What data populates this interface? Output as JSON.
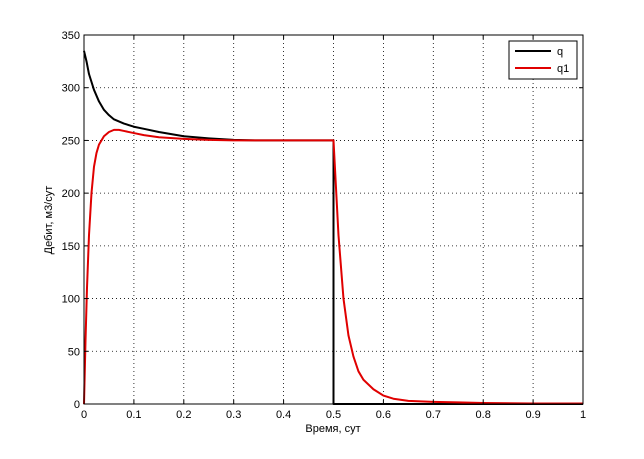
{
  "chart_data": {
    "type": "line",
    "xlabel": "Время, сут",
    "ylabel": "Дебит, м3/сут",
    "xlim": [
      0,
      1
    ],
    "ylim": [
      0,
      350
    ],
    "xticks": [
      0,
      0.1,
      0.2,
      0.3,
      0.4,
      0.5,
      0.6,
      0.7,
      0.8,
      0.9,
      1
    ],
    "xtick_labels": [
      "0",
      "0.1",
      "0.2",
      "0.3",
      "0.4",
      "0.5",
      "0.6",
      "0.7",
      "0.8",
      "0.9",
      "1"
    ],
    "yticks": [
      0,
      50,
      100,
      150,
      200,
      250,
      300,
      350
    ],
    "ytick_labels": [
      "0",
      "50",
      "100",
      "150",
      "200",
      "250",
      "300",
      "350"
    ],
    "grid": true,
    "legend_position": "top-right",
    "series": [
      {
        "name": "q",
        "color": "#000000",
        "x": [
          0,
          0.005,
          0.01,
          0.02,
          0.03,
          0.04,
          0.05,
          0.06,
          0.08,
          0.1,
          0.12,
          0.15,
          0.2,
          0.25,
          0.3,
          0.35,
          0.4,
          0.45,
          0.5,
          0.5,
          0.5,
          0.52,
          0.6,
          0.7,
          0.8,
          0.9,
          1.0
        ],
        "y": [
          335,
          325,
          313,
          298,
          287,
          279,
          274,
          270,
          266,
          263,
          261,
          258,
          254,
          252,
          250.5,
          250,
          250,
          250,
          250,
          125,
          0,
          0,
          0,
          0,
          0,
          0,
          0
        ]
      },
      {
        "name": "q1",
        "color": "#e00000",
        "x": [
          0,
          0.003,
          0.006,
          0.01,
          0.015,
          0.02,
          0.025,
          0.03,
          0.04,
          0.05,
          0.06,
          0.07,
          0.08,
          0.1,
          0.12,
          0.15,
          0.2,
          0.25,
          0.3,
          0.35,
          0.4,
          0.45,
          0.5,
          0.505,
          0.51,
          0.52,
          0.53,
          0.54,
          0.55,
          0.56,
          0.58,
          0.6,
          0.62,
          0.65,
          0.7,
          0.75,
          0.8,
          0.9,
          1.0
        ],
        "y": [
          0,
          60,
          110,
          160,
          200,
          225,
          238,
          246,
          254,
          258,
          260,
          260,
          259,
          257,
          255,
          253,
          251.5,
          250.5,
          250,
          250,
          250,
          250,
          250,
          205,
          160,
          100,
          65,
          45,
          31,
          23,
          14,
          8,
          5,
          3,
          2,
          1.5,
          1,
          0.5,
          0.5
        ]
      }
    ]
  }
}
